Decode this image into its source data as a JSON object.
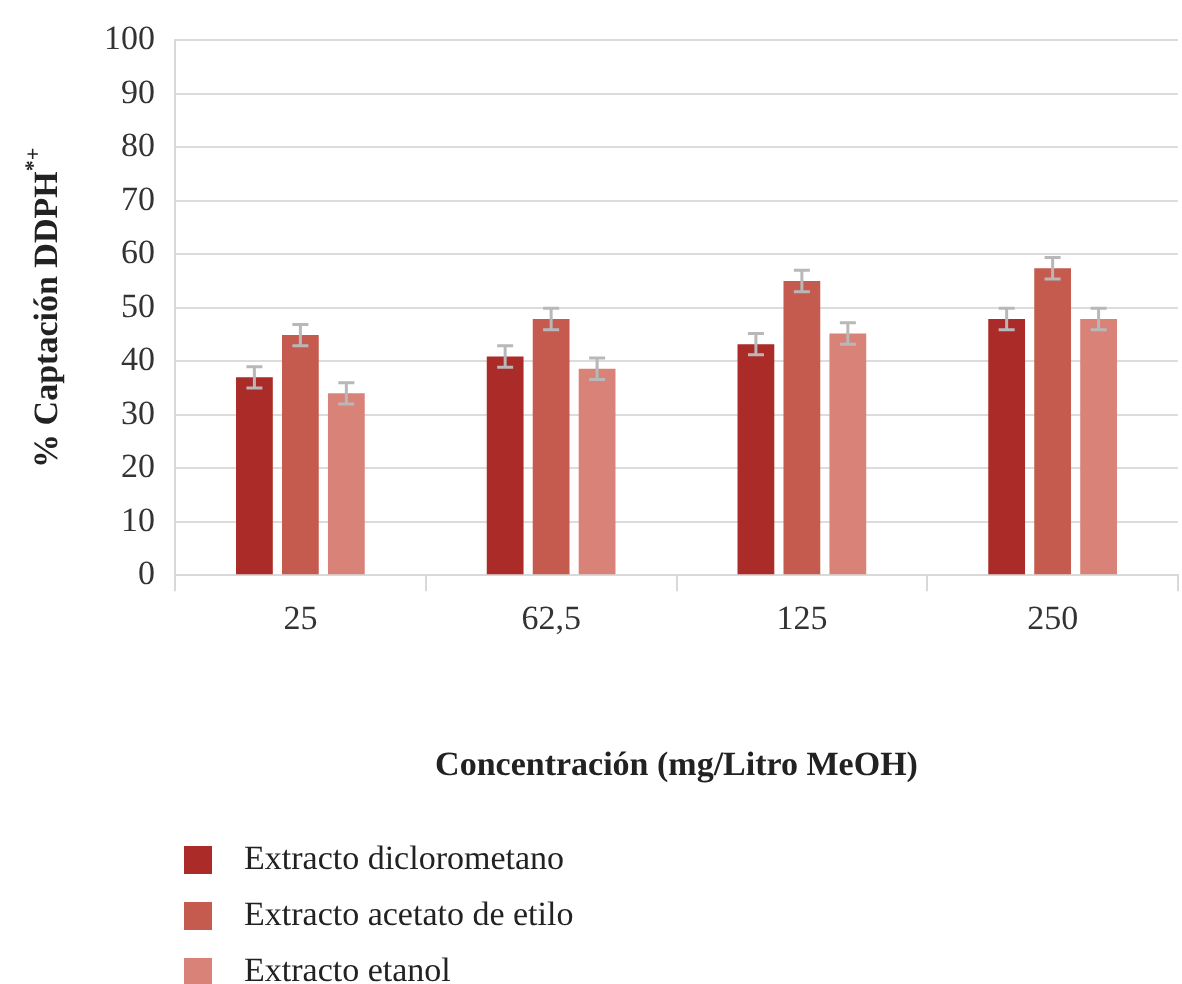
{
  "chart_data": {
    "type": "bar",
    "xlabel": "Concentración (mg/Litro MeOH)",
    "ylabel": "% Captación DDPH$^{*+}$",
    "categories": [
      "25",
      "62,5",
      "125",
      "250"
    ],
    "series": [
      {
        "name": "Extracto diclorometano",
        "color": "#ab2b28",
        "values": [
          37.0,
          40.9,
          43.2,
          47.9
        ],
        "errors": [
          2,
          2,
          2,
          2
        ]
      },
      {
        "name": "Extracto acetato de etilo",
        "color": "#c45b4e",
        "values": [
          44.9,
          47.9,
          55,
          57.4
        ],
        "errors": [
          2,
          2,
          2,
          2
        ]
      },
      {
        "name": "Extracto etanol",
        "color": "#d98278",
        "values": [
          34.0,
          38.6,
          45.2,
          47.9
        ],
        "errors": [
          2,
          2,
          2,
          2
        ]
      }
    ],
    "ylim": [
      0,
      100
    ],
    "yticks": [
      0,
      10,
      20,
      30,
      40,
      50,
      60,
      70,
      80,
      90,
      100
    ],
    "grid": "y",
    "legend": "bottom"
  }
}
